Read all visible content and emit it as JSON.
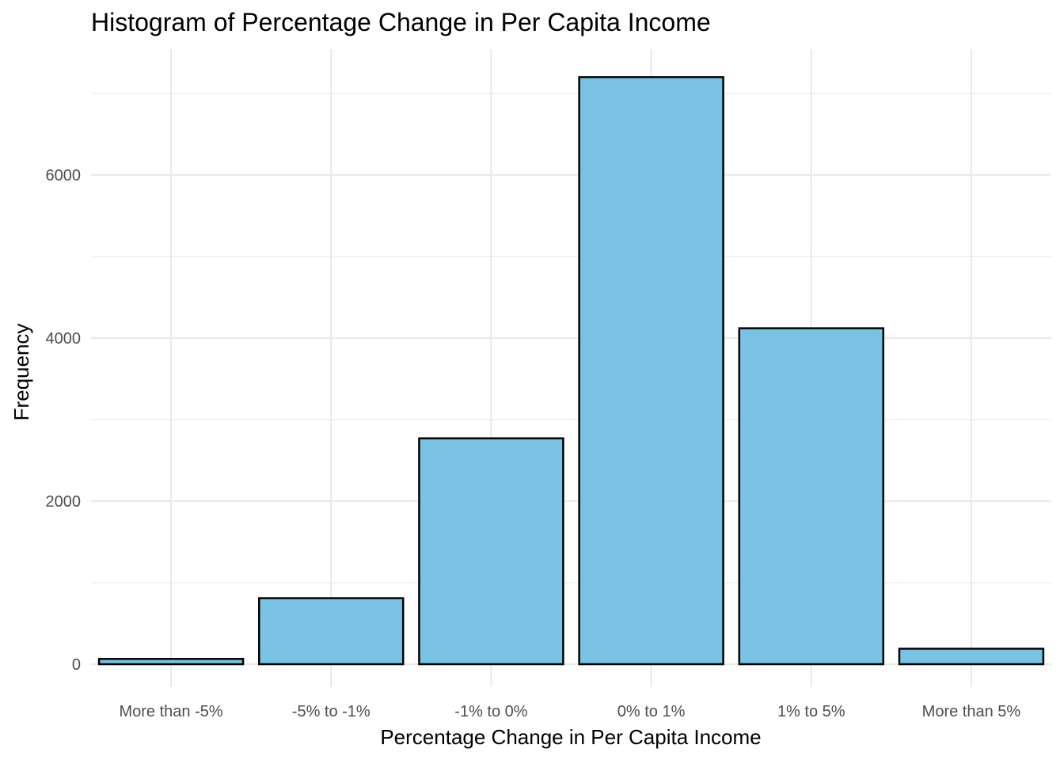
{
  "chart_data": {
    "type": "bar",
    "title": "Histogram of Percentage Change in Per Capita Income",
    "xlabel": "Percentage Change in Per Capita Income",
    "ylabel": "Frequency",
    "categories": [
      "More than -5%",
      "-5% to -1%",
      "-1% to 0%",
      "0% to 1%",
      "1% to 5%",
      "More than 5%"
    ],
    "values": [
      65,
      810,
      2770,
      7200,
      4120,
      190
    ],
    "ylim": [
      -300,
      7550
    ],
    "y_ticks": [
      0,
      2000,
      4000,
      6000
    ],
    "grid": true,
    "legend": "none",
    "colors": {
      "bar_fill": "#7ac2e4",
      "bar_stroke": "#000000",
      "grid": "#ebebeb"
    }
  }
}
